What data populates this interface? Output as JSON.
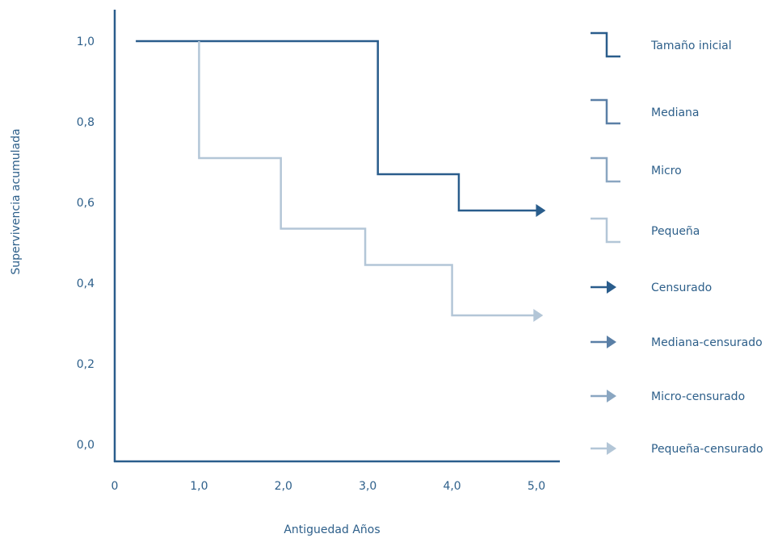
{
  "chart_data": {
    "type": "line",
    "step": true,
    "xlabel": "Antiguedad Años",
    "ylabel": "Supervivencia acumulada",
    "xlim": [
      0,
      5.0
    ],
    "ylim": [
      0,
      1.0
    ],
    "x_ticks": [
      {
        "value": 0,
        "label": "0"
      },
      {
        "value": 1.0,
        "label": "1,0"
      },
      {
        "value": 2.0,
        "label": "2,0"
      },
      {
        "value": 3.0,
        "label": "3,0"
      },
      {
        "value": 4.0,
        "label": "4,0"
      },
      {
        "value": 5.0,
        "label": "5,0"
      }
    ],
    "y_ticks": [
      {
        "value": 0.0,
        "label": "0,0"
      },
      {
        "value": 0.2,
        "label": "0,2"
      },
      {
        "value": 0.4,
        "label": "0,4"
      },
      {
        "value": 0.6,
        "label": "0,6"
      },
      {
        "value": 0.8,
        "label": "0,8"
      },
      {
        "value": 1.0,
        "label": "1,0"
      }
    ],
    "grid": false,
    "legend_position": "right",
    "series": [
      {
        "name": "Tamaño inicial",
        "color": "#2a5d8c",
        "points": [
          [
            0.25,
            1.0
          ],
          [
            3.12,
            1.0
          ],
          [
            3.12,
            0.67
          ],
          [
            4.08,
            0.67
          ],
          [
            4.08,
            0.58
          ],
          [
            5.1,
            0.58
          ]
        ],
        "censored": true
      },
      {
        "name": "Pequeña",
        "color": "#b3c6d7",
        "points": [
          [
            1.0,
            1.0
          ],
          [
            1.0,
            0.71
          ],
          [
            1.97,
            0.71
          ],
          [
            1.97,
            0.535
          ],
          [
            2.97,
            0.535
          ],
          [
            2.97,
            0.445
          ],
          [
            4.0,
            0.445
          ],
          [
            4.0,
            0.32
          ],
          [
            5.07,
            0.32
          ]
        ],
        "censored": true
      }
    ],
    "legend": [
      {
        "label": "Tamaño inicial",
        "symbol": "step",
        "color": "#2a5d8c"
      },
      {
        "label": "Mediana",
        "symbol": "step",
        "color": "#5a7fa6"
      },
      {
        "label": "Micro",
        "symbol": "step",
        "color": "#8aa6c1"
      },
      {
        "label": "Pequeña",
        "symbol": "step",
        "color": "#b3c6d7"
      },
      {
        "label": "Censurado",
        "symbol": "arrow",
        "color": "#2a5d8c"
      },
      {
        "label": "Mediana-censurado",
        "symbol": "arrow",
        "color": "#5a7fa6"
      },
      {
        "label": "Micro-censurado",
        "symbol": "arrow",
        "color": "#8aa6c1"
      },
      {
        "label": "Pequeña-censurado",
        "symbol": "arrow",
        "color": "#b3c6d7"
      }
    ]
  },
  "colors": {
    "axis": "#2a5d8c",
    "text": "#2d5f8a"
  }
}
